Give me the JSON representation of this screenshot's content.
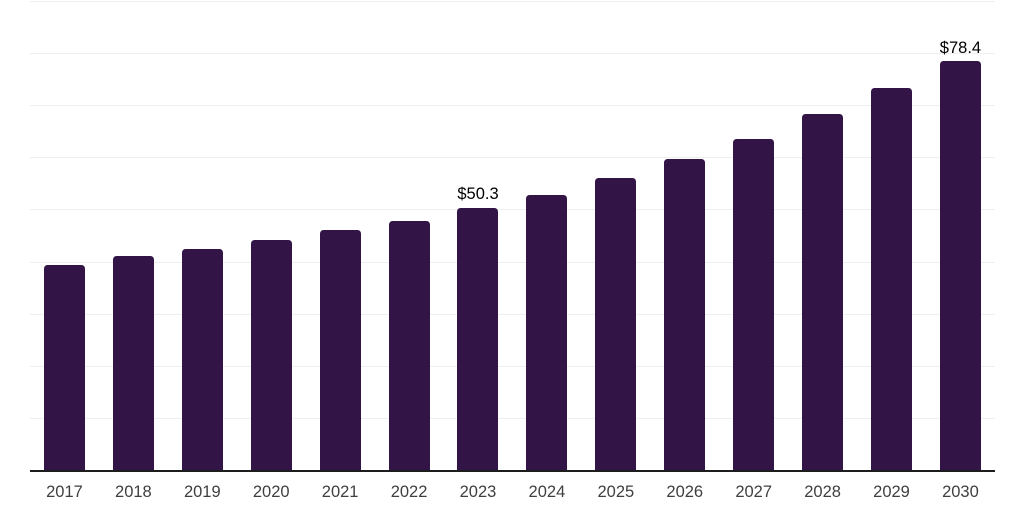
{
  "chart_data": {
    "type": "bar",
    "title": "",
    "xlabel": "",
    "ylabel": "",
    "categories": [
      "2017",
      "2018",
      "2019",
      "2020",
      "2021",
      "2022",
      "2023",
      "2024",
      "2025",
      "2026",
      "2027",
      "2028",
      "2029",
      "2030"
    ],
    "values": [
      39.4,
      41.0,
      42.5,
      44.2,
      46.0,
      47.8,
      50.3,
      52.8,
      56.1,
      59.6,
      63.6,
      68.3,
      73.4,
      78.4
    ],
    "labels": {
      "2023": "$50.3",
      "2030": "$78.4"
    },
    "ylim": [
      0,
      90
    ],
    "gridline_step": 10,
    "grid": true,
    "legend": false,
    "y_axis_labels_visible": false,
    "colors": {
      "bar": "#321447",
      "axis": "#1d1d1d",
      "grid": "#efefef",
      "tick_label": "#3f3f3f",
      "value_label": "#000000"
    }
  }
}
